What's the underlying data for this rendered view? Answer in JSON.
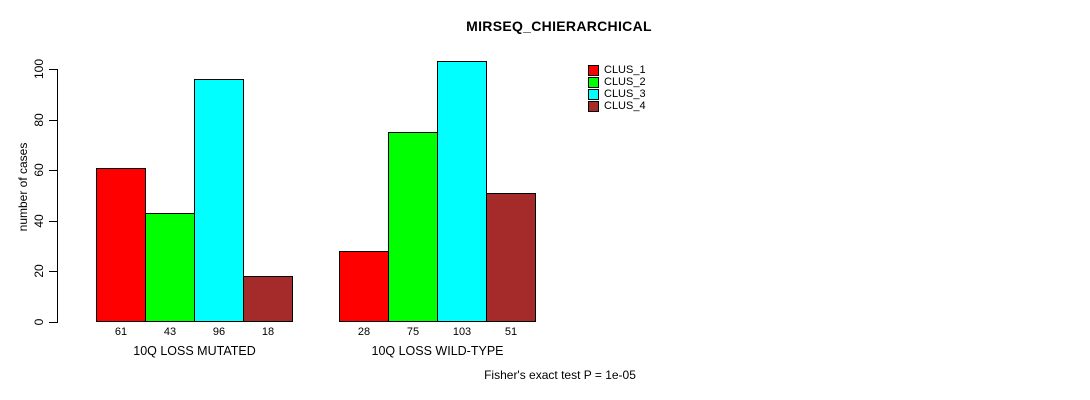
{
  "chart_data": {
    "type": "bar",
    "title": "MIRSEQ_CHIERARCHICAL",
    "ylabel": "number of cases",
    "xlabel": "",
    "ylim": [
      0,
      100
    ],
    "yticks": [
      0,
      20,
      40,
      60,
      80,
      100
    ],
    "grid": false,
    "legend_position": "top-right",
    "show_bar_value_labels": true,
    "categories": [
      "10Q LOSS MUTATED",
      "10Q LOSS WILD-TYPE"
    ],
    "series": [
      {
        "name": "CLUS_1",
        "color": "#ff0000",
        "values": [
          61,
          28
        ]
      },
      {
        "name": "CLUS_2",
        "color": "#00ff00",
        "values": [
          43,
          75
        ]
      },
      {
        "name": "CLUS_3",
        "color": "#00ffff",
        "values": [
          96,
          103
        ]
      },
      {
        "name": "CLUS_4",
        "color": "#a52a2a",
        "values": [
          18,
          51
        ]
      }
    ],
    "annotation": "Fisher's exact test P = 1e-05"
  }
}
